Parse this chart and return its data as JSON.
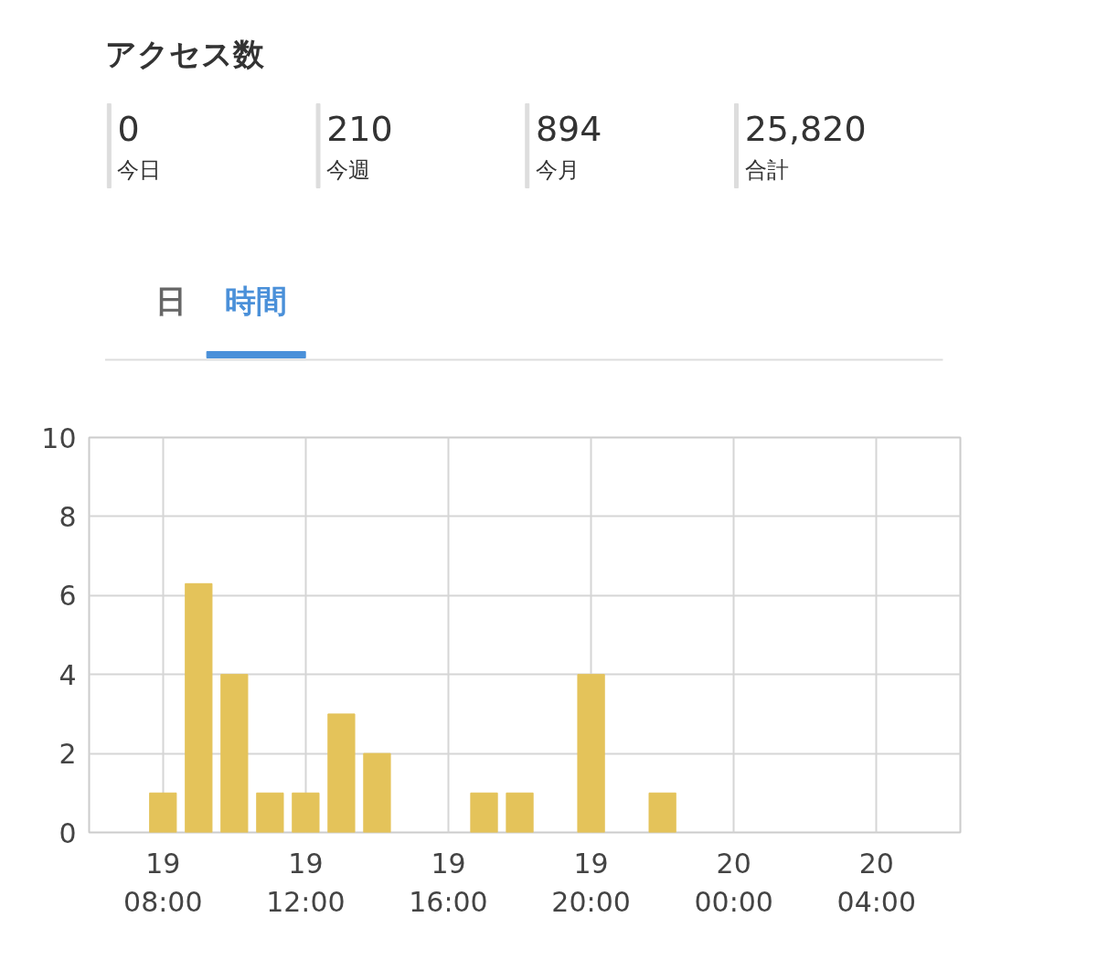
{
  "chart_data": [
    {
      "type": "other",
      "title": "アクセス数",
      "categories": [
        "今日",
        "今週",
        "今月",
        "合計"
      ],
      "values": [
        0,
        210,
        894,
        25820
      ],
      "value_labels": [
        "0",
        "210",
        "894",
        "25,820"
      ],
      "annotations": [
        "日",
        "時間"
      ]
    },
    {
      "type": "bar",
      "categories": [
        null,
        null,
        "19\n08:00",
        null,
        null,
        null,
        "19\n12:00",
        null,
        null,
        null,
        "19\n16:00",
        null,
        null,
        null,
        "19\n20:00",
        null,
        null,
        null,
        "20\n00:00",
        null,
        null,
        null,
        "20\n04:00",
        null,
        null
      ],
      "values": [
        null,
        null,
        1,
        6.3,
        4,
        1,
        1,
        3,
        2,
        null,
        null,
        1,
        1,
        null,
        4,
        null,
        1,
        null,
        null,
        null,
        null,
        null,
        null,
        null,
        null
      ],
      "color": "#e4c35a",
      "ylim": [
        0,
        10
      ],
      "yticks": [
        0,
        2,
        4,
        6,
        8,
        10
      ],
      "grid": true
    }
  ]
}
